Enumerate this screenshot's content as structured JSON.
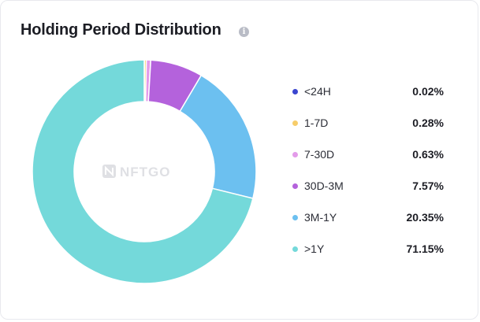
{
  "card": {
    "title": "Holding Period Distribution",
    "info_icon": "info-icon"
  },
  "watermark": {
    "text": "NFTGO",
    "icon": "nftgo-logo-icon"
  },
  "colors": {
    "<24H": "#3a45cf",
    "1-7D": "#f7cd6a",
    "7-30D": "#e39bea",
    "30D-3M": "#b462dc",
    "3M-1Y": "#6cc0f0",
    ">1Y": "#74d9da"
  },
  "chart_data": {
    "type": "pie",
    "style": "donut",
    "title": "Holding Period Distribution",
    "start_angle_deg": 0,
    "direction": "clockwise",
    "legend_position": "right",
    "slices": [
      {
        "label": "<24H",
        "value": 0.02,
        "display": "0.02%",
        "color": "#3a45cf"
      },
      {
        "label": "1-7D",
        "value": 0.28,
        "display": "0.28%",
        "color": "#f7cd6a"
      },
      {
        "label": "7-30D",
        "value": 0.63,
        "display": "0.63%",
        "color": "#e39bea"
      },
      {
        "label": "30D-3M",
        "value": 7.57,
        "display": "7.57%",
        "color": "#b462dc"
      },
      {
        "label": "3M-1Y",
        "value": 20.35,
        "display": "20.35%",
        "color": "#6cc0f0"
      },
      {
        "label": ">1Y",
        "value": 71.15,
        "display": "71.15%",
        "color": "#74d9da"
      }
    ]
  }
}
